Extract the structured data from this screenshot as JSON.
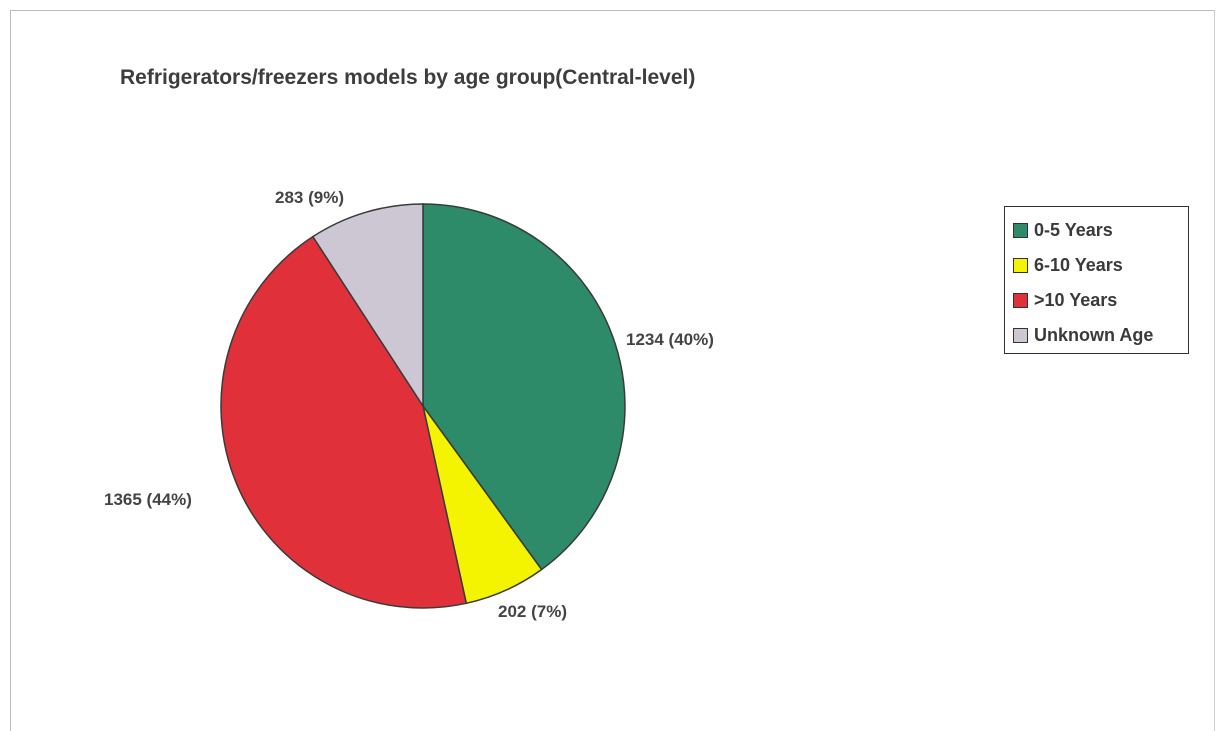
{
  "chart_data": {
    "type": "pie",
    "title": "Refrigerators/freezers models by age group(Central-level)",
    "categories": [
      "0-5 Years",
      "6-10 Years",
      ">10 Years",
      "Unknown Age"
    ],
    "values": [
      1234,
      202,
      1365,
      283
    ],
    "percentages": [
      40,
      7,
      44,
      9
    ],
    "data_labels": [
      "1234 (40%)",
      "202 (7%)",
      "1365 (44%)",
      "283 (9%)"
    ],
    "colors": [
      "#2e8b6a",
      "#f4f400",
      "#e0313a",
      "#cdc7d3"
    ],
    "legend": {
      "placement": "right",
      "entries": [
        "0-5 Years",
        "6-10 Years",
        ">10 Years",
        "Unknown Age"
      ]
    }
  }
}
